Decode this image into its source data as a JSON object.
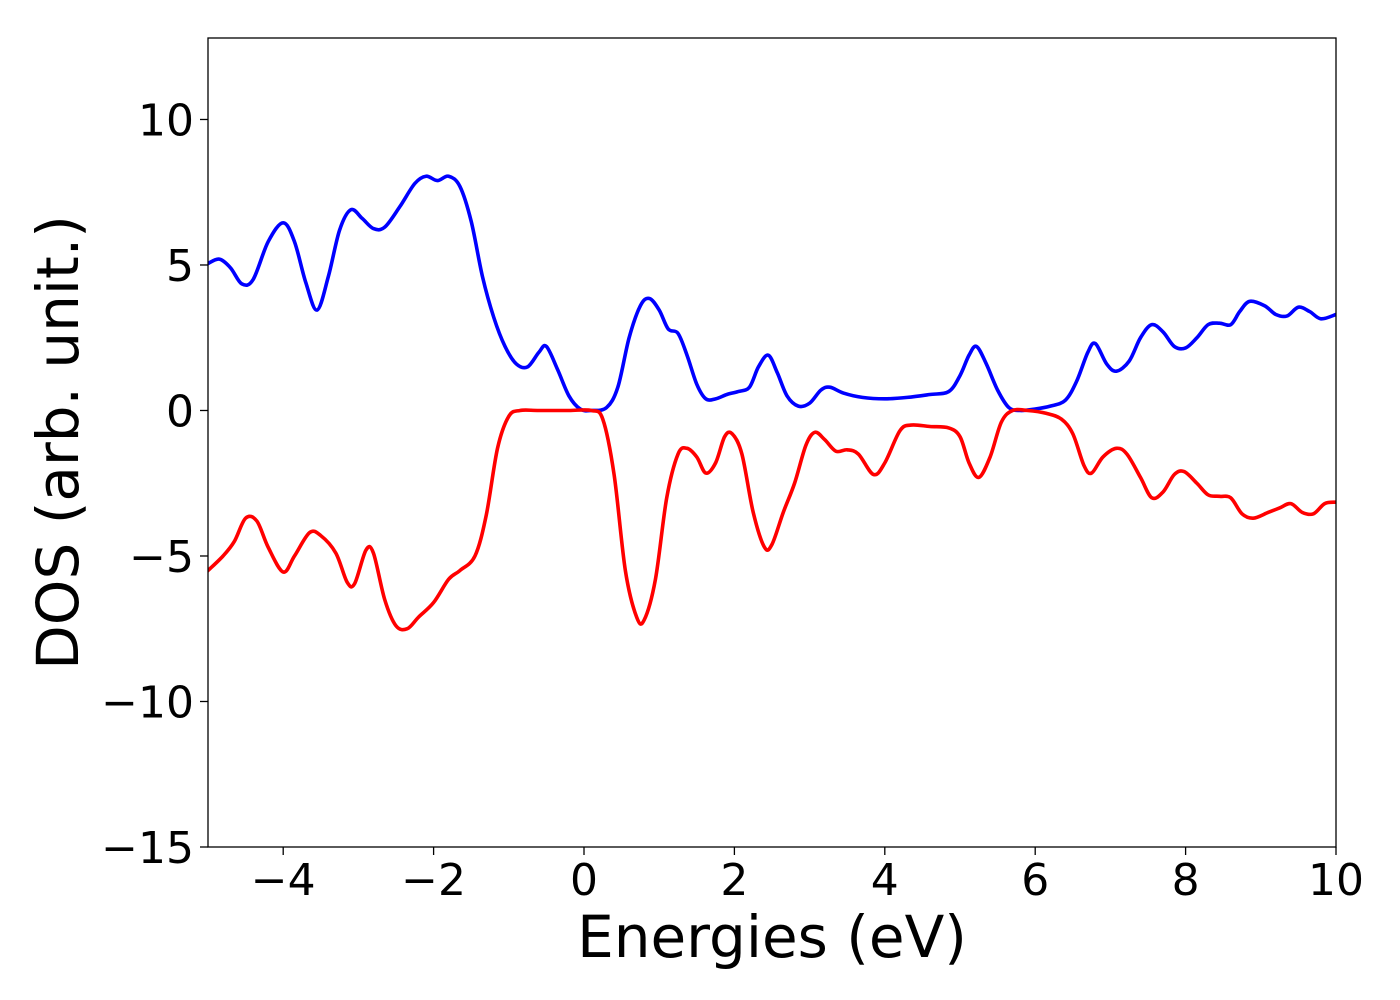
{
  "chart_data": {
    "type": "line",
    "title": "",
    "xlabel": "Energies (eV)",
    "ylabel": "DOS (arb. unit.)",
    "xlim": [
      -5,
      10
    ],
    "ylim": [
      -15,
      12.8
    ],
    "grid": false,
    "x_ticks": [
      -4,
      -2,
      0,
      2,
      4,
      6,
      8,
      10
    ],
    "x_tick_labels": [
      "−4",
      "−2",
      "0",
      "2",
      "4",
      "6",
      "8",
      "10"
    ],
    "y_ticks": [
      -15,
      -10,
      -5,
      0,
      5,
      10
    ],
    "y_tick_labels": [
      "−15",
      "−10",
      "−5",
      "0",
      "5",
      "10"
    ],
    "series": [
      {
        "color": "#0000ff",
        "points": [
          [
            -5.0,
            5.05
          ],
          [
            -4.85,
            5.2
          ],
          [
            -4.7,
            4.9
          ],
          [
            -4.55,
            4.35
          ],
          [
            -4.4,
            4.5
          ],
          [
            -4.2,
            5.8
          ],
          [
            -4.0,
            6.45
          ],
          [
            -3.85,
            5.8
          ],
          [
            -3.7,
            4.4
          ],
          [
            -3.55,
            3.45
          ],
          [
            -3.4,
            4.6
          ],
          [
            -3.25,
            6.2
          ],
          [
            -3.1,
            6.9
          ],
          [
            -2.95,
            6.6
          ],
          [
            -2.8,
            6.25
          ],
          [
            -2.65,
            6.3
          ],
          [
            -2.45,
            7.0
          ],
          [
            -2.25,
            7.8
          ],
          [
            -2.1,
            8.05
          ],
          [
            -1.95,
            7.9
          ],
          [
            -1.8,
            8.05
          ],
          [
            -1.65,
            7.7
          ],
          [
            -1.5,
            6.5
          ],
          [
            -1.35,
            4.6
          ],
          [
            -1.2,
            3.2
          ],
          [
            -1.05,
            2.2
          ],
          [
            -0.9,
            1.6
          ],
          [
            -0.75,
            1.5
          ],
          [
            -0.6,
            2.0
          ],
          [
            -0.5,
            2.2
          ],
          [
            -0.35,
            1.4
          ],
          [
            -0.2,
            0.5
          ],
          [
            -0.05,
            0.05
          ],
          [
            0.1,
            0.0
          ],
          [
            0.3,
            0.1
          ],
          [
            0.45,
            0.8
          ],
          [
            0.6,
            2.5
          ],
          [
            0.75,
            3.6
          ],
          [
            0.87,
            3.85
          ],
          [
            1.0,
            3.45
          ],
          [
            1.12,
            2.8
          ],
          [
            1.25,
            2.65
          ],
          [
            1.37,
            1.9
          ],
          [
            1.5,
            0.9
          ],
          [
            1.62,
            0.4
          ],
          [
            1.75,
            0.4
          ],
          [
            1.9,
            0.55
          ],
          [
            2.05,
            0.65
          ],
          [
            2.2,
            0.8
          ],
          [
            2.32,
            1.5
          ],
          [
            2.45,
            1.9
          ],
          [
            2.57,
            1.3
          ],
          [
            2.7,
            0.5
          ],
          [
            2.85,
            0.15
          ],
          [
            3.0,
            0.25
          ],
          [
            3.15,
            0.7
          ],
          [
            3.27,
            0.8
          ],
          [
            3.45,
            0.6
          ],
          [
            3.7,
            0.45
          ],
          [
            4.0,
            0.4
          ],
          [
            4.3,
            0.45
          ],
          [
            4.6,
            0.55
          ],
          [
            4.85,
            0.65
          ],
          [
            5.0,
            1.2
          ],
          [
            5.12,
            1.9
          ],
          [
            5.22,
            2.2
          ],
          [
            5.35,
            1.6
          ],
          [
            5.5,
            0.7
          ],
          [
            5.65,
            0.1
          ],
          [
            5.8,
            0.0
          ],
          [
            6.0,
            0.05
          ],
          [
            6.2,
            0.15
          ],
          [
            6.4,
            0.35
          ],
          [
            6.55,
            1.0
          ],
          [
            6.7,
            2.0
          ],
          [
            6.8,
            2.3
          ],
          [
            6.95,
            1.6
          ],
          [
            7.08,
            1.35
          ],
          [
            7.25,
            1.7
          ],
          [
            7.4,
            2.5
          ],
          [
            7.55,
            2.95
          ],
          [
            7.7,
            2.7
          ],
          [
            7.85,
            2.2
          ],
          [
            8.0,
            2.15
          ],
          [
            8.15,
            2.5
          ],
          [
            8.3,
            2.95
          ],
          [
            8.45,
            3.0
          ],
          [
            8.6,
            2.95
          ],
          [
            8.72,
            3.4
          ],
          [
            8.85,
            3.75
          ],
          [
            9.05,
            3.6
          ],
          [
            9.2,
            3.3
          ],
          [
            9.35,
            3.25
          ],
          [
            9.5,
            3.55
          ],
          [
            9.65,
            3.4
          ],
          [
            9.8,
            3.15
          ],
          [
            10.0,
            3.3
          ]
        ]
      },
      {
        "color": "#ff0000",
        "points": [
          [
            -5.0,
            -5.5
          ],
          [
            -4.8,
            -5.0
          ],
          [
            -4.65,
            -4.5
          ],
          [
            -4.5,
            -3.7
          ],
          [
            -4.35,
            -3.8
          ],
          [
            -4.2,
            -4.7
          ],
          [
            -4.0,
            -5.55
          ],
          [
            -3.85,
            -5.0
          ],
          [
            -3.65,
            -4.2
          ],
          [
            -3.5,
            -4.3
          ],
          [
            -3.3,
            -4.9
          ],
          [
            -3.15,
            -5.9
          ],
          [
            -3.05,
            -5.95
          ],
          [
            -2.9,
            -4.8
          ],
          [
            -2.8,
            -4.9
          ],
          [
            -2.65,
            -6.5
          ],
          [
            -2.5,
            -7.4
          ],
          [
            -2.35,
            -7.5
          ],
          [
            -2.2,
            -7.1
          ],
          [
            -2.0,
            -6.6
          ],
          [
            -1.8,
            -5.8
          ],
          [
            -1.65,
            -5.5
          ],
          [
            -1.45,
            -5.0
          ],
          [
            -1.3,
            -3.6
          ],
          [
            -1.15,
            -1.3
          ],
          [
            -1.0,
            -0.2
          ],
          [
            -0.85,
            0.0
          ],
          [
            -0.6,
            0.0
          ],
          [
            -0.2,
            0.0
          ],
          [
            0.1,
            0.0
          ],
          [
            0.25,
            -0.3
          ],
          [
            0.4,
            -2.2
          ],
          [
            0.55,
            -5.5
          ],
          [
            0.7,
            -7.1
          ],
          [
            0.8,
            -7.2
          ],
          [
            0.95,
            -5.8
          ],
          [
            1.1,
            -3.0
          ],
          [
            1.25,
            -1.5
          ],
          [
            1.37,
            -1.3
          ],
          [
            1.5,
            -1.6
          ],
          [
            1.62,
            -2.15
          ],
          [
            1.75,
            -1.8
          ],
          [
            1.87,
            -0.9
          ],
          [
            1.97,
            -0.8
          ],
          [
            2.1,
            -1.5
          ],
          [
            2.25,
            -3.5
          ],
          [
            2.4,
            -4.7
          ],
          [
            2.5,
            -4.6
          ],
          [
            2.65,
            -3.5
          ],
          [
            2.8,
            -2.5
          ],
          [
            2.95,
            -1.2
          ],
          [
            3.07,
            -0.75
          ],
          [
            3.2,
            -1.0
          ],
          [
            3.35,
            -1.4
          ],
          [
            3.5,
            -1.35
          ],
          [
            3.65,
            -1.5
          ],
          [
            3.85,
            -2.2
          ],
          [
            4.0,
            -1.8
          ],
          [
            4.2,
            -0.7
          ],
          [
            4.35,
            -0.5
          ],
          [
            4.6,
            -0.55
          ],
          [
            4.85,
            -0.6
          ],
          [
            5.0,
            -0.9
          ],
          [
            5.12,
            -1.8
          ],
          [
            5.25,
            -2.3
          ],
          [
            5.4,
            -1.6
          ],
          [
            5.55,
            -0.4
          ],
          [
            5.7,
            0.0
          ],
          [
            5.9,
            0.0
          ],
          [
            6.15,
            -0.1
          ],
          [
            6.35,
            -0.3
          ],
          [
            6.5,
            -0.8
          ],
          [
            6.65,
            -1.9
          ],
          [
            6.75,
            -2.15
          ],
          [
            6.9,
            -1.6
          ],
          [
            7.08,
            -1.3
          ],
          [
            7.22,
            -1.5
          ],
          [
            7.4,
            -2.3
          ],
          [
            7.55,
            -3.0
          ],
          [
            7.7,
            -2.8
          ],
          [
            7.85,
            -2.2
          ],
          [
            7.98,
            -2.1
          ],
          [
            8.15,
            -2.5
          ],
          [
            8.3,
            -2.9
          ],
          [
            8.45,
            -2.95
          ],
          [
            8.6,
            -3.0
          ],
          [
            8.75,
            -3.55
          ],
          [
            8.9,
            -3.7
          ],
          [
            9.1,
            -3.5
          ],
          [
            9.25,
            -3.35
          ],
          [
            9.4,
            -3.2
          ],
          [
            9.55,
            -3.5
          ],
          [
            9.7,
            -3.55
          ],
          [
            9.85,
            -3.2
          ],
          [
            10.0,
            -3.15
          ]
        ]
      }
    ]
  }
}
